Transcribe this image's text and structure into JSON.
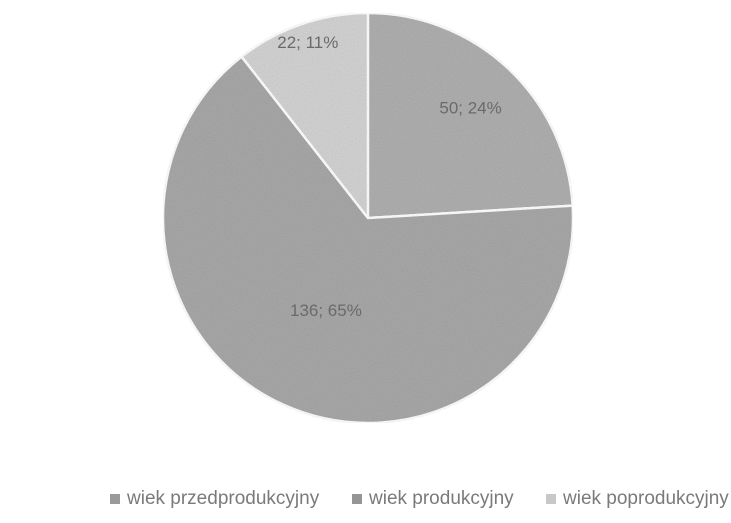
{
  "chart_data": {
    "type": "pie",
    "categories": [
      "wiek przedprodukcyjny",
      "wiek produkcyjny",
      "wiek poprodukcyjny"
    ],
    "values": [
      50,
      136,
      22
    ],
    "data_labels": [
      "50; 24%",
      "136; 65%",
      "22; 11%"
    ],
    "colors": [
      "#b0b0b0",
      "#a9a9a9",
      "#d4d4d4"
    ],
    "legend_position": "bottom",
    "start_angle_deg": 0,
    "direction": "clockwise"
  },
  "legend": {
    "items": [
      {
        "label": "wiek przedprodukcyjny",
        "color": "#9a9a9a"
      },
      {
        "label": "wiek produkcyjny",
        "color": "#959595"
      },
      {
        "label": "wiek poprodukcyjny",
        "color": "#c8c8c8"
      }
    ]
  }
}
